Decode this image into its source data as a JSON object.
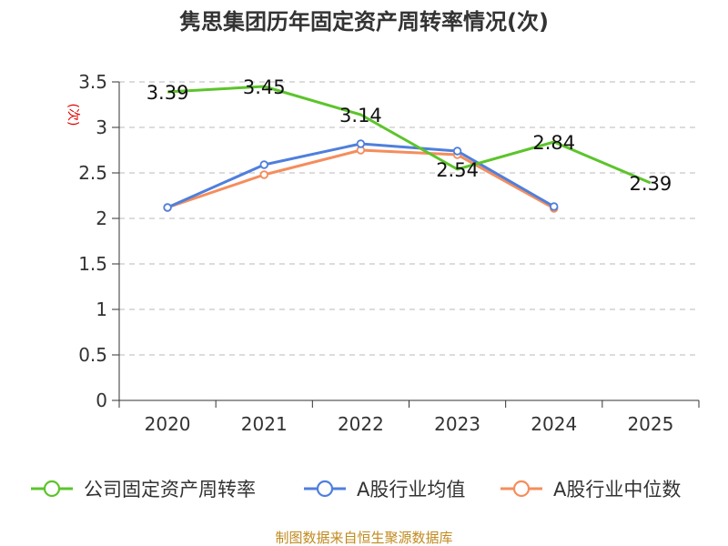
{
  "chart_data": {
    "type": "line",
    "title": "隽思集团历年固定资产周转率情况(次)",
    "ylabel": "(次)",
    "xlabel": "",
    "categories": [
      "2020",
      "2021",
      "2022",
      "2023",
      "2024",
      "2025"
    ],
    "ylim": [
      0,
      3.5
    ],
    "yticks": [
      "0",
      "0.5",
      "1",
      "1.5",
      "2",
      "2.5",
      "3",
      "3.5"
    ],
    "grid": true,
    "legend_position": "bottom",
    "series": [
      {
        "name": "公司固定资产周转率",
        "color": "#5cc42b",
        "values": [
          3.39,
          3.45,
          3.14,
          2.54,
          2.84,
          2.39
        ],
        "labels": [
          "3.39",
          "3.45",
          "3.14",
          "2.54",
          "2.84",
          "2.39"
        ],
        "show_markers": false
      },
      {
        "name": "A股行业均值",
        "color": "#4f7fdc",
        "values": [
          2.12,
          2.59,
          2.82,
          2.74,
          2.13,
          null
        ],
        "show_markers": true
      },
      {
        "name": "A股行业中位数",
        "color": "#f58d5c",
        "values": [
          2.12,
          2.48,
          2.75,
          2.7,
          2.11,
          null
        ],
        "show_markers": true
      }
    ]
  },
  "footer": {
    "source": "制图数据来自恒生聚源数据库"
  }
}
